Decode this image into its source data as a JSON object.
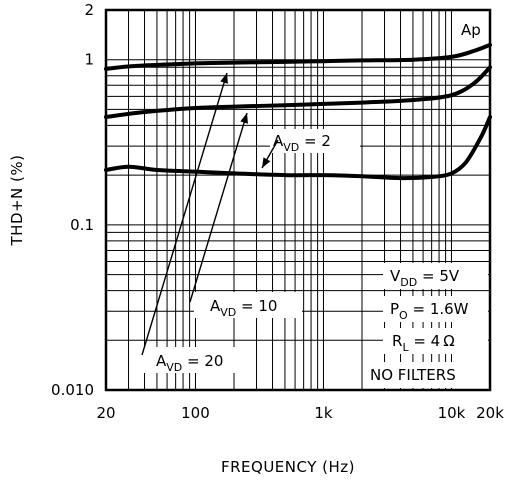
{
  "chart_data": {
    "type": "line",
    "title": "",
    "xlabel": "FREQUENCY (Hz)",
    "ylabel": "THD+N (%)",
    "x_scale": "log",
    "y_scale": "log",
    "xlim": [
      20,
      20000
    ],
    "ylim": [
      0.01,
      2
    ],
    "grid": true,
    "x_ticks": [
      {
        "value": 20,
        "label": "20"
      },
      {
        "value": 100,
        "label": "100"
      },
      {
        "value": 1000,
        "label": "1k"
      },
      {
        "value": 10000,
        "label": "10k"
      },
      {
        "value": 20000,
        "label": "20k"
      }
    ],
    "y_ticks": [
      {
        "value": 0.01,
        "label": "0.010"
      },
      {
        "value": 0.1,
        "label": "0.1"
      },
      {
        "value": 1,
        "label": "1"
      },
      {
        "value": 2,
        "label": "2"
      }
    ],
    "series": [
      {
        "x": [
          20,
          30,
          50,
          100,
          200,
          500,
          1000,
          2000,
          5000,
          10000,
          15000,
          20000
        ],
        "y": [
          0.88,
          0.91,
          0.93,
          0.95,
          0.96,
          0.97,
          0.98,
          0.99,
          1.0,
          1.04,
          1.13,
          1.23
        ]
      },
      {
        "x": [
          20,
          30,
          50,
          100,
          200,
          500,
          1000,
          2000,
          5000,
          10000,
          15000,
          20000
        ],
        "y": [
          0.45,
          0.47,
          0.49,
          0.51,
          0.52,
          0.53,
          0.54,
          0.55,
          0.57,
          0.61,
          0.72,
          0.9
        ]
      },
      {
        "x": [
          20,
          30,
          50,
          100,
          200,
          500,
          1000,
          2000,
          4000,
          7000,
          10000,
          13000,
          17000,
          20000
        ],
        "y": [
          0.215,
          0.225,
          0.215,
          0.21,
          0.205,
          0.2,
          0.2,
          0.197,
          0.192,
          0.195,
          0.205,
          0.24,
          0.34,
          0.45
        ]
      }
    ],
    "annotations": {
      "ap": "Ap",
      "avd2": {
        "main": "A",
        "sub": "VD",
        "rest": " = 2"
      },
      "avd10": {
        "main": "A",
        "sub": "VD",
        "rest": " = 10"
      },
      "avd20": {
        "main": "A",
        "sub": "VD",
        "rest": " = 20"
      },
      "vdd": {
        "main": "V",
        "sub": "DD",
        "rest": " = 5V"
      },
      "po": {
        "main": "P",
        "sub": "O",
        "rest": " = 1.6W"
      },
      "rl": {
        "main": "R",
        "sub": "L",
        "rest": " = 4 Ω"
      },
      "filters": "NO FILTERS"
    }
  }
}
